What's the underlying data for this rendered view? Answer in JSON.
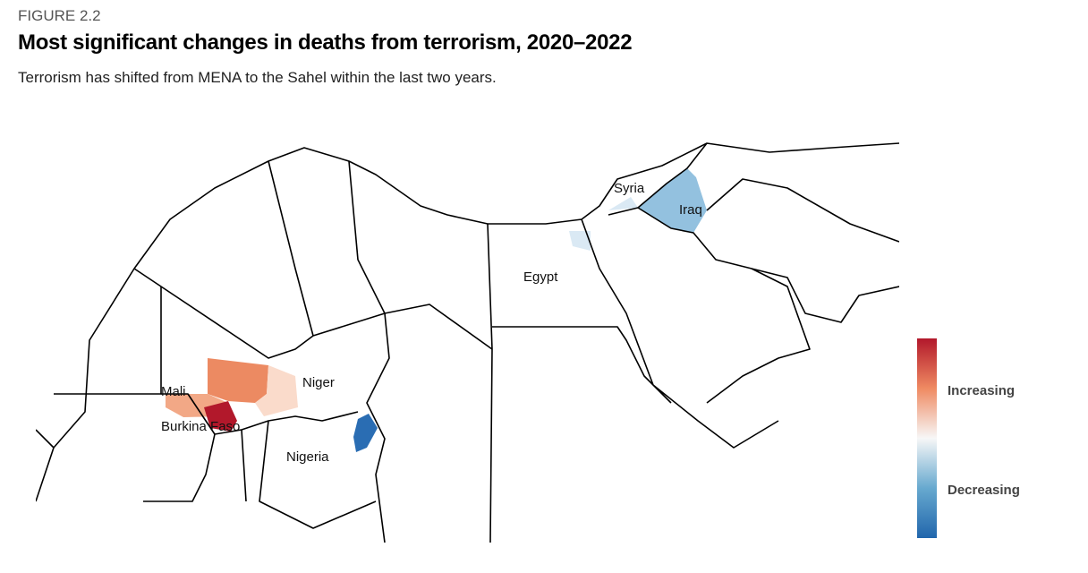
{
  "header": {
    "figure": "FIGURE 2.2",
    "title": "Most significant changes in deaths from terrorism, 2020–2022",
    "subtitle": "Terrorism has shifted from MENA to the Sahel within the last two years."
  },
  "map": {
    "labels": [
      "Syria",
      "Iraq",
      "Egypt",
      "Niger",
      "Mali",
      "Burkina Faso",
      "Nigeria"
    ]
  },
  "legend": {
    "high": "Increasing",
    "low": "Decreasing"
  }
}
